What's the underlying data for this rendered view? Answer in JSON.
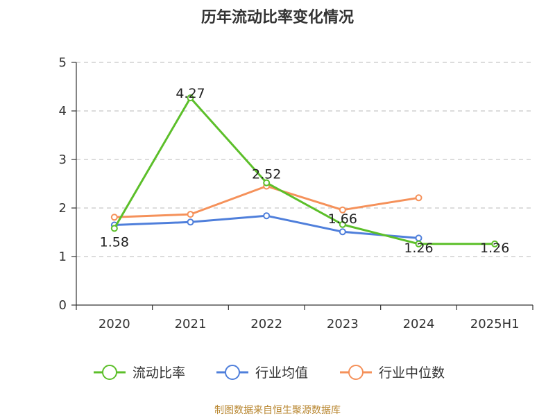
{
  "chart_data": {
    "type": "line",
    "title": "历年流动比率变化情况",
    "categories": [
      "2020",
      "2021",
      "2022",
      "2023",
      "2024",
      "2025H1"
    ],
    "ylim": [
      0,
      5
    ],
    "yticks": [
      "0",
      "1",
      "2",
      "3",
      "4",
      "5"
    ],
    "grid": true,
    "legend_position": "bottom",
    "series": [
      {
        "name": "流动比率",
        "color": "#5cbf2a",
        "values": [
          1.58,
          4.27,
          2.52,
          1.66,
          1.26,
          1.26
        ],
        "labels": [
          "1.58",
          "4.27",
          "2.52",
          "1.66",
          "1.26",
          "1.26"
        ]
      },
      {
        "name": "行业均值",
        "color": "#4f7fdb",
        "values": [
          1.65,
          1.71,
          1.84,
          1.51,
          1.38,
          null
        ]
      },
      {
        "name": "行业中位数",
        "color": "#f5915a",
        "values": [
          1.81,
          1.87,
          2.45,
          1.96,
          2.21,
          null
        ]
      }
    ],
    "source": "制图数据来自恒生聚源数据库"
  }
}
